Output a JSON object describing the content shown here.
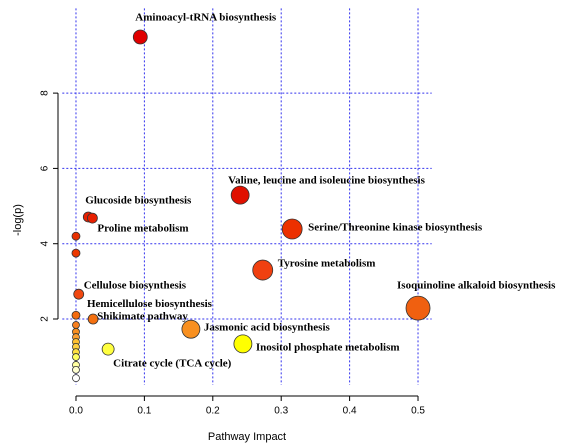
{
  "chart_data": {
    "type": "scatter",
    "xlabel": "Pathway Impact",
    "ylabel": "-log(p)",
    "xlim": [
      -0.02,
      0.52
    ],
    "ylim": [
      0.25,
      10.25
    ],
    "xticks": [
      {
        "value": 0,
        "label": "0.0"
      },
      0.1,
      0.2,
      0.3,
      0.4,
      0.5
    ],
    "yticks": [
      2,
      4,
      6,
      8
    ],
    "grid": true,
    "labels": [
      "Aminoacyl-tRNA biosynthesis",
      "Valine, leucine and isoleucine biosynthesis",
      "Glucoside biosynthesis",
      "Proline metabolism",
      "Serine/Threonine kinase biosynthesis",
      null,
      null,
      "Tyrosine metabolism",
      "Cellulose biosynthesis",
      "Isoquinoline alkaloid biosynthesis",
      "Hemicellulose biosynthesis",
      "Shikimate pathway",
      "Jasmonic acid biosynthesis",
      "Inositol phosphate metabolism",
      "Citrate cycle (TCA cycle)",
      null,
      null,
      null,
      null,
      null,
      null,
      null,
      null,
      null,
      null
    ],
    "x": [
      0.094,
      0.24,
      0.018,
      0.024,
      0.316,
      0.0,
      0.0,
      0.273,
      0.004,
      0.5,
      0.0,
      0.025,
      0.168,
      0.244,
      0.047,
      0,
      0,
      0,
      0,
      0,
      0,
      0,
      0,
      0,
      0
    ],
    "values": [
      9.49,
      5.29,
      4.71,
      4.68,
      4.39,
      4.2,
      3.75,
      3.3,
      2.66,
      2.29,
      2.1,
      2.0,
      1.73,
      1.34,
      1.2,
      1.84,
      1.66,
      1.52,
      1.39,
      1.26,
      1.12,
      0.99,
      0.78,
      0.65,
      0.43
    ],
    "sizes": [
      7,
      9,
      5,
      5,
      10,
      4,
      4,
      10,
      5,
      12,
      4,
      5,
      9,
      9,
      6,
      3.5,
      3.5,
      3.5,
      3.5,
      3.5,
      3.5,
      3.5,
      3.5,
      3.5,
      3.5
    ],
    "colors": [
      "#e00000",
      "#e01000",
      "#e82000",
      "#e82000",
      "#ec3000",
      "#e83000",
      "#ec3800",
      "#f04010",
      "#f04810",
      "#f06010",
      "#f46a10",
      "#f47010",
      "#f89020",
      "#ffff00",
      "#ffff40",
      "#f88020",
      "#fa9020",
      "#fca030",
      "#ffc030",
      "#ffd040",
      "#ffe040",
      "#ffff60",
      "#ffffa0",
      "#ffffd0",
      "#ffffff"
    ]
  }
}
